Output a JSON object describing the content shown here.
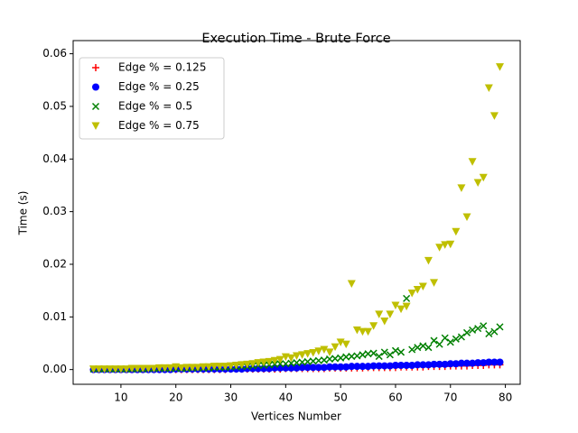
{
  "chart_data": {
    "type": "scatter",
    "title": "Execution Time - Brute Force",
    "x_label": "Vertices Number",
    "y_label": "Time (s)",
    "x": [
      5,
      6,
      7,
      8,
      9,
      10,
      11,
      12,
      13,
      14,
      15,
      16,
      17,
      18,
      19,
      20,
      21,
      22,
      23,
      24,
      25,
      26,
      27,
      28,
      29,
      30,
      31,
      32,
      33,
      34,
      35,
      36,
      37,
      38,
      39,
      40,
      41,
      42,
      43,
      44,
      45,
      46,
      47,
      48,
      49,
      50,
      51,
      52,
      53,
      54,
      55,
      56,
      57,
      58,
      59,
      60,
      61,
      62,
      63,
      64,
      65,
      66,
      67,
      68,
      69,
      70,
      71,
      72,
      73,
      74,
      75,
      76,
      77,
      78,
      79
    ],
    "series": [
      {
        "name": "Edge % = 0.125",
        "color": "#ff0000",
        "marker": "plus",
        "values": [
          0,
          0,
          0,
          0,
          0,
          0,
          0,
          0,
          0,
          0,
          0,
          0,
          0,
          0,
          0,
          0,
          0,
          0,
          0,
          0,
          0,
          0,
          0,
          0,
          0,
          0.0001,
          0.0001,
          0.0001,
          0.0001,
          0.0001,
          0.0001,
          0.0001,
          0.0001,
          0.0001,
          0.0001,
          0.0002,
          0.0002,
          0.0002,
          0.0002,
          0.0002,
          0.0002,
          0.0002,
          0.0002,
          0.0003,
          0.0003,
          0.0003,
          0.0003,
          0.0003,
          0.0003,
          0.0003,
          0.0004,
          0.0004,
          0.0004,
          0.0004,
          0.0004,
          0.0004,
          0.0005,
          0.0005,
          0.0005,
          0.0005,
          0.0005,
          0.0006,
          0.0006,
          0.0006,
          0.0006,
          0.0007,
          0.0007,
          0.0007,
          0.0007,
          0.0008,
          0.0008,
          0.0008,
          0.0009,
          0.0009,
          0.0009
        ]
      },
      {
        "name": "Edge % = 0.25",
        "color": "#0000ff",
        "marker": "circle",
        "values": [
          0,
          0,
          0,
          0,
          0,
          0,
          0,
          0,
          0,
          0,
          0,
          0,
          0,
          0,
          0,
          0.0001,
          0.0001,
          0.0001,
          0.0001,
          0.0001,
          0.0001,
          0.0001,
          0.0001,
          0.0001,
          0.0001,
          0.0001,
          0.0001,
          0.0001,
          0.0002,
          0.0002,
          0.0002,
          0.0002,
          0.0002,
          0.0003,
          0.0003,
          0.0003,
          0.0003,
          0.0003,
          0.0004,
          0.0004,
          0.0004,
          0.0004,
          0.0004,
          0.0005,
          0.0005,
          0.0005,
          0.0005,
          0.0006,
          0.0006,
          0.0006,
          0.0006,
          0.0007,
          0.0007,
          0.0007,
          0.0007,
          0.0008,
          0.0008,
          0.0008,
          0.0008,
          0.0009,
          0.0009,
          0.0009,
          0.001,
          0.001,
          0.001,
          0.0011,
          0.0011,
          0.0012,
          0.0012,
          0.0012,
          0.0013,
          0.0013,
          0.0014,
          0.0014,
          0.0014
        ]
      },
      {
        "name": "Edge % = 0.5",
        "color": "#008000",
        "marker": "x",
        "values": [
          0.0001,
          0.0001,
          0.0001,
          0.0001,
          0.0001,
          0.0001,
          0.0001,
          0.0001,
          0.0001,
          0.0001,
          0.0002,
          0.0002,
          0.0002,
          0.0002,
          0.0002,
          0.0002,
          0.0002,
          0.0002,
          0.0003,
          0.0003,
          0.0003,
          0.0003,
          0.0004,
          0.0004,
          0.0004,
          0.0005,
          0.0005,
          0.0006,
          0.0006,
          0.0007,
          0.0008,
          0.0008,
          0.0009,
          0.001,
          0.0011,
          0.0011,
          0.0012,
          0.0013,
          0.0014,
          0.0015,
          0.0016,
          0.0017,
          0.0018,
          0.002,
          0.0021,
          0.0022,
          0.0024,
          0.0025,
          0.0026,
          0.0028,
          0.003,
          0.0031,
          0.0025,
          0.0033,
          0.0028,
          0.0036,
          0.0033,
          0.0135,
          0.0038,
          0.0042,
          0.0045,
          0.0042,
          0.0055,
          0.0048,
          0.006,
          0.0052,
          0.0058,
          0.0062,
          0.007,
          0.0075,
          0.0078,
          0.0083,
          0.0068,
          0.0072,
          0.0081
        ]
      },
      {
        "name": "Edge % = 0.75",
        "color": "#bfbf00",
        "marker": "triangle",
        "values": [
          0.0001,
          0.0001,
          0.0001,
          0.0001,
          0.0001,
          0.0001,
          0.0001,
          0.0002,
          0.0002,
          0.0002,
          0.0002,
          0.0002,
          0.0003,
          0.0003,
          0.0003,
          0.0005,
          0.0003,
          0.0004,
          0.0004,
          0.0004,
          0.0005,
          0.0005,
          0.0006,
          0.0006,
          0.0006,
          0.0007,
          0.0008,
          0.0009,
          0.001,
          0.0011,
          0.0013,
          0.0014,
          0.0015,
          0.0017,
          0.0019,
          0.0024,
          0.0022,
          0.0026,
          0.0028,
          0.003,
          0.0032,
          0.0035,
          0.0038,
          0.0033,
          0.0043,
          0.0052,
          0.0048,
          0.0163,
          0.0075,
          0.0072,
          0.0072,
          0.0083,
          0.0105,
          0.0092,
          0.0105,
          0.0122,
          0.0115,
          0.012,
          0.0145,
          0.0152,
          0.0158,
          0.0207,
          0.0165,
          0.0232,
          0.0237,
          0.0238,
          0.0262,
          0.0345,
          0.029,
          0.0395,
          0.0355,
          0.0365,
          0.0535,
          0.0482,
          0.0575
        ]
      }
    ],
    "xlim": [
      1.3,
      82.7
    ],
    "ylim": [
      -0.0028,
      0.0625
    ],
    "xticks": [
      10,
      20,
      30,
      40,
      50,
      60,
      70,
      80
    ],
    "yticks": [
      {
        "value": 0,
        "label": "0.00"
      },
      0.01,
      0.02,
      0.03,
      0.04,
      0.05,
      0.06
    ],
    "legend": "upper left",
    "grid": false
  }
}
